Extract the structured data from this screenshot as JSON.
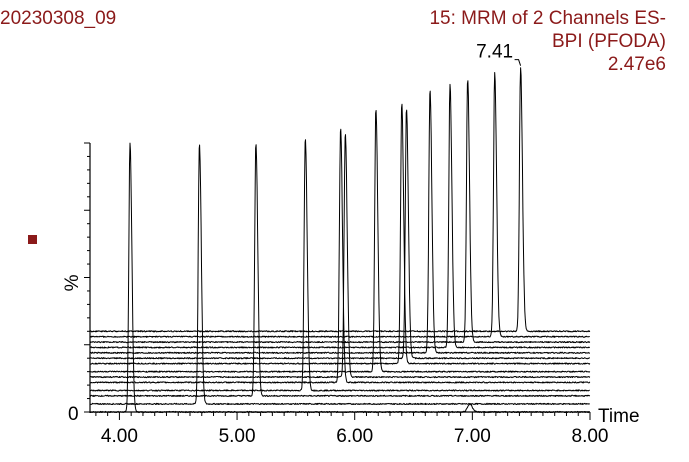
{
  "colors": {
    "header_text": "#8b1a1a",
    "marker": "#8b1a1a",
    "axis": "#000000",
    "trace": "#000000"
  },
  "header": {
    "sample_id": "20230308_09",
    "channel_title": "15: MRM of 2 Channels ES-",
    "channel_bpi": "BPI (PFODA)",
    "channel_intensity": "2.47e6"
  },
  "chart_data": {
    "type": "line",
    "title": "15: MRM of 2 Channels ES-",
    "xlabel": "Time",
    "ylabel": "%",
    "xlim": [
      3.75,
      8.0
    ],
    "x_ticks": [
      "4.00",
      "5.00",
      "6.00",
      "7.00",
      "8.00"
    ],
    "y_ticks": [
      "0"
    ],
    "peak_annotation": {
      "x": 7.41,
      "label": "7.41"
    },
    "series": [
      {
        "offset": 0,
        "peak_rt": 4.09,
        "peak_height": 100,
        "bump_rt": 6.98,
        "bump_height": 3
      },
      {
        "offset": 3,
        "peak_rt": 4.68,
        "peak_height": 97
      },
      {
        "offset": 6,
        "peak_rt": 5.16,
        "peak_height": 94
      },
      {
        "offset": 8,
        "peak_rt": 5.58,
        "peak_height": 94
      },
      {
        "offset": 11,
        "peak_rt": 5.88,
        "peak_height": 95
      },
      {
        "offset": 13,
        "peak_rt": 5.92,
        "peak_height": 91
      },
      {
        "offset": 15,
        "peak_rt": 6.18,
        "peak_height": 98
      },
      {
        "offset": 18,
        "peak_rt": 6.4,
        "peak_height": 97
      },
      {
        "offset": 20,
        "peak_rt": 6.44,
        "peak_height": 93
      },
      {
        "offset": 22,
        "peak_rt": 6.64,
        "peak_height": 98
      },
      {
        "offset": 24,
        "peak_rt": 6.81,
        "peak_height": 98
      },
      {
        "offset": 26,
        "peak_rt": 6.96,
        "peak_height": 98
      },
      {
        "offset": 28,
        "peak_rt": 7.19,
        "peak_height": 98
      },
      {
        "offset": 30,
        "peak_rt": 7.41,
        "peak_height": 98
      }
    ]
  }
}
